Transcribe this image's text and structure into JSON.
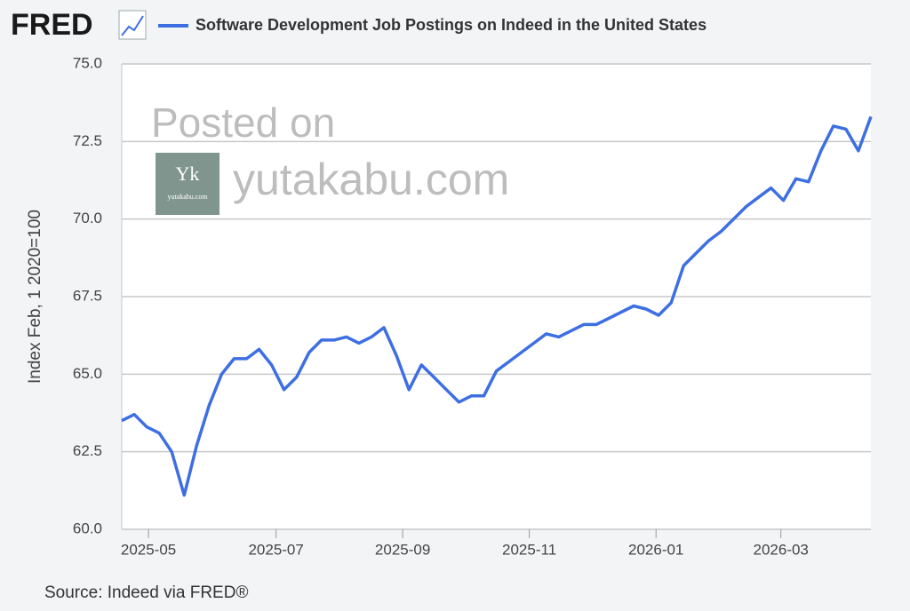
{
  "header": {
    "logo": "FRED"
  },
  "watermark": {
    "line1": "Posted on",
    "line2": "yutakabu.com",
    "badge_mark": "Yk",
    "badge_text": "yutakabu.com"
  },
  "chart_data": {
    "type": "line",
    "y_label": "Index Feb, 1 2020=100",
    "source": "Source: Indeed via FRED®",
    "series": [
      {
        "name": "Software Development Job Postings on Indeed in the United States",
        "color": "#3d6fe3",
        "values": [
          63.5,
          63.7,
          63.3,
          63.1,
          62.5,
          61.1,
          62.7,
          64.0,
          65.0,
          65.5,
          65.5,
          65.8,
          65.3,
          64.5,
          64.9,
          65.7,
          66.1,
          66.1,
          66.2,
          66.0,
          66.2,
          66.5,
          65.6,
          64.5,
          65.3,
          64.9,
          64.5,
          64.1,
          64.3,
          64.3,
          65.1,
          65.4,
          65.7,
          66.0,
          66.3,
          66.2,
          66.4,
          66.6,
          66.6,
          66.8,
          67.0,
          67.2,
          67.1,
          66.9,
          67.3,
          68.5,
          68.9,
          69.3,
          69.6,
          70.0,
          70.4,
          70.7,
          71.0,
          70.6,
          71.3,
          71.2,
          72.2,
          73.0,
          72.9,
          72.2,
          73.3
        ]
      }
    ],
    "xlim": [
      0,
      60
    ],
    "xticks": [
      {
        "value": 2.14,
        "label": "2025-05"
      },
      {
        "value": 12.36,
        "label": "2025-07"
      },
      {
        "value": 22.5,
        "label": "2025-09"
      },
      {
        "value": 32.64,
        "label": "2025-11"
      },
      {
        "value": 42.79,
        "label": "2026-01"
      },
      {
        "value": 52.79,
        "label": "2026-03"
      }
    ],
    "ylim": [
      60,
      75
    ],
    "yticks": [
      {
        "value": 60,
        "label": "60.0"
      },
      {
        "value": 62.5,
        "label": "62.5"
      },
      {
        "value": 65,
        "label": "65.0"
      },
      {
        "value": 67.5,
        "label": "67.5"
      },
      {
        "value": 70,
        "label": "70.0"
      },
      {
        "value": 72.5,
        "label": "72.5"
      },
      {
        "value": 75,
        "label": "75.0"
      }
    ],
    "grid": true
  }
}
